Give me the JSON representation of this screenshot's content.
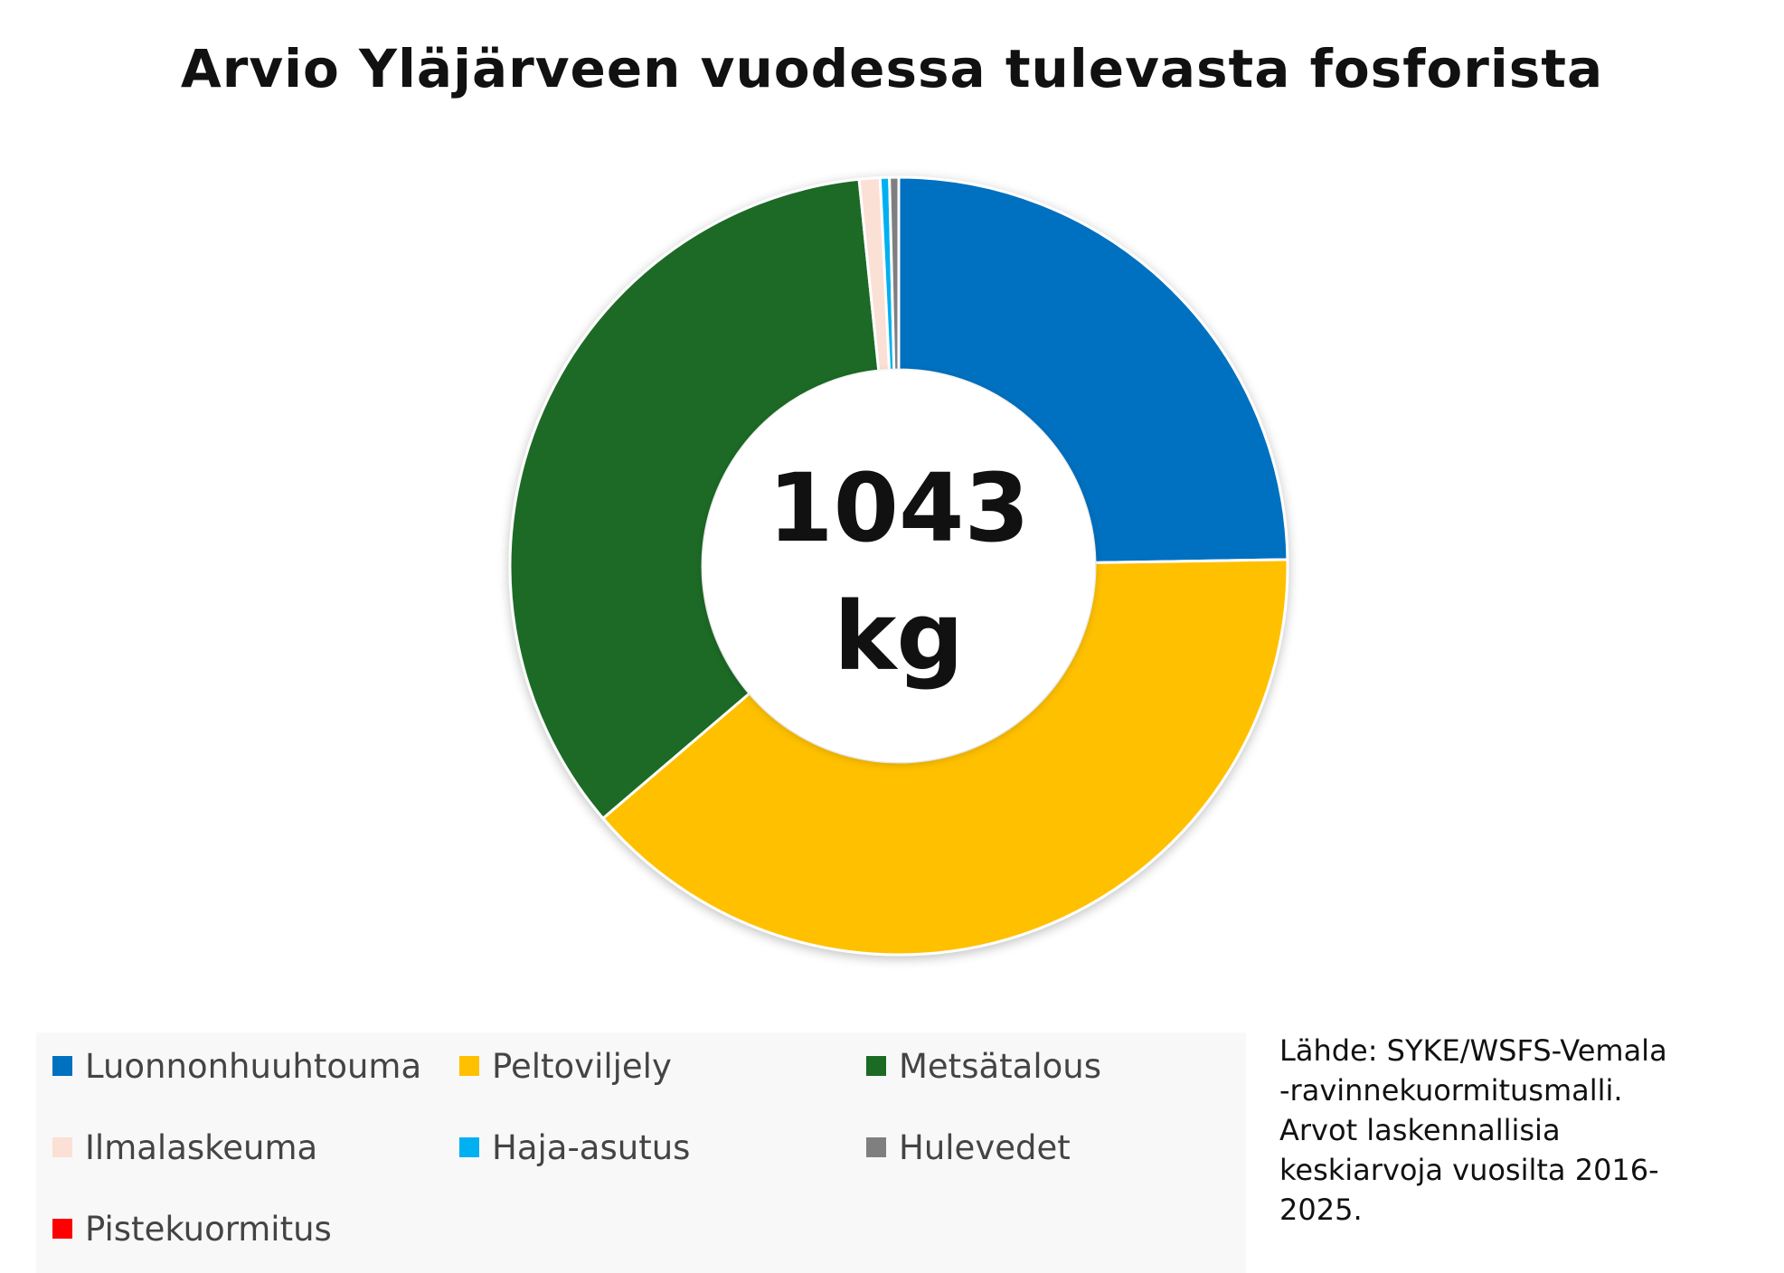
{
  "chart_data": {
    "type": "pie",
    "title": "Arvio Yläjärveen vuodessa tulevasta fosforista",
    "center_value": "1043",
    "center_unit": "kg",
    "categories": [
      "Luonnonhuuhtouma",
      "Peltoviljely",
      "Metsätalous",
      "Ilmalaskeuma",
      "Haja-asutus",
      "Hulevedet",
      "Pistekuormitus"
    ],
    "values": [
      258,
      407,
      361,
      9,
      4,
      4,
      0
    ],
    "colors": [
      "#0070C0",
      "#FFC000",
      "#1B6B25",
      "#FBE0D6",
      "#00B0F0",
      "#7F7F7F",
      "#FF0000"
    ],
    "legend_position": "bottom"
  },
  "legend": {
    "items": [
      {
        "label": "Luonnonhuuhtouma",
        "color": "#0070C0"
      },
      {
        "label": "Peltoviljely",
        "color": "#FFC000"
      },
      {
        "label": "Metsätalous",
        "color": "#1B6B25"
      },
      {
        "label": "Ilmalaskeuma",
        "color": "#FBE0D6"
      },
      {
        "label": "Haja-asutus",
        "color": "#00B0F0"
      },
      {
        "label": "Hulevedet",
        "color": "#7F7F7F"
      },
      {
        "label": "Pistekuormitus",
        "color": "#FF0000"
      }
    ]
  },
  "source_note": {
    "lines": [
      "Lähde: SYKE/WSFS-Vemala",
      "-ravinnekuormitusmalli.",
      "Arvot laskennallisia",
      "keskiarvoja vuosilta 2016-",
      "2025."
    ]
  }
}
